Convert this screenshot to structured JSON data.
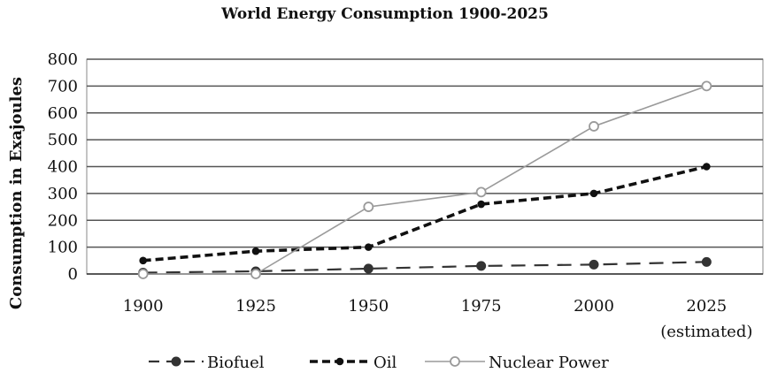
{
  "chart_data": {
    "type": "line",
    "title": "World Energy Consumption 1900-2025",
    "xlabel": "",
    "ylabel": "Consumption in Exajoules",
    "categories": [
      "1900",
      "1925",
      "1950",
      "1975",
      "2000",
      "2025"
    ],
    "category_note": "(estimated)",
    "ylim": [
      0,
      800
    ],
    "yticks": [
      "0",
      "100",
      "200",
      "300",
      "400",
      "500",
      "600",
      "700",
      "800"
    ],
    "grid": true,
    "legend_position": "bottom",
    "series": [
      {
        "name": "Biofuel",
        "values": [
          5,
          10,
          20,
          30,
          35,
          45
        ],
        "style": "dashed",
        "marker": "filled-circle",
        "color": "#222222"
      },
      {
        "name": "Oil",
        "values": [
          50,
          85,
          100,
          260,
          300,
          400
        ],
        "style": "dashed-bold",
        "marker": "small-filled",
        "color": "#111111"
      },
      {
        "name": "Nuclear Power",
        "values": [
          0,
          0,
          250,
          305,
          550,
          700
        ],
        "style": "solid-thin",
        "marker": "hollow-circle",
        "color": "#9a9a9a"
      }
    ]
  }
}
